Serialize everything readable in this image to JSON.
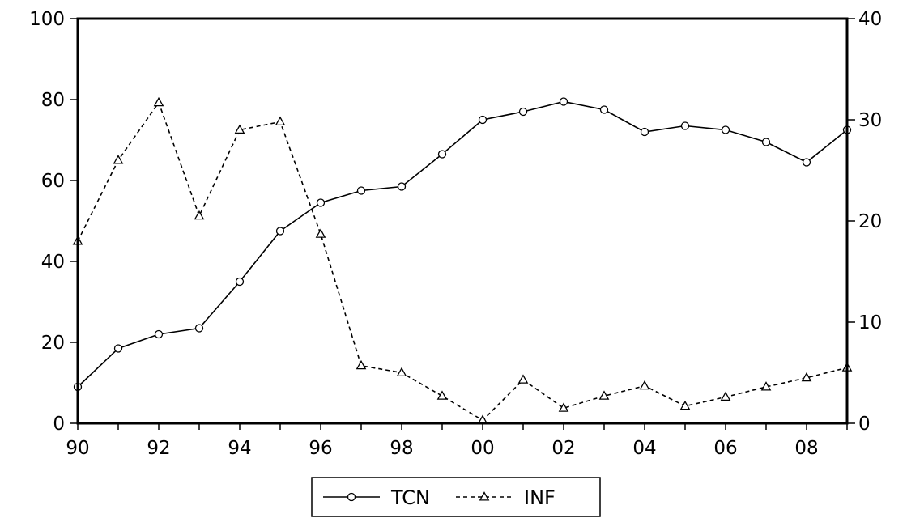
{
  "chart_data": {
    "type": "line",
    "title": "",
    "xlabel": "",
    "ylabel_left": "",
    "ylabel_right": "",
    "x": [
      1990,
      1991,
      1992,
      1993,
      1994,
      1995,
      1996,
      1997,
      1998,
      1999,
      2000,
      2001,
      2002,
      2003,
      2004,
      2005,
      2006,
      2007,
      2008,
      2009
    ],
    "x_tick_labels": [
      "90",
      "92",
      "94",
      "96",
      "98",
      "00",
      "02",
      "04",
      "06",
      "08"
    ],
    "x_tick_years": [
      1990,
      1992,
      1994,
      1996,
      1998,
      2000,
      2002,
      2004,
      2006,
      2008
    ],
    "xlim": [
      1990,
      2009
    ],
    "ylim_left": [
      0,
      100
    ],
    "ylim_right": [
      0,
      40
    ],
    "left_ticks": [
      "0",
      "20",
      "40",
      "60",
      "80",
      "100"
    ],
    "right_ticks": [
      "0",
      "10",
      "20",
      "30",
      "40"
    ],
    "grid": false,
    "legend_position": "bottom-center",
    "series": [
      {
        "name": "TCN",
        "axis": "left",
        "style": "solid",
        "marker": "circle",
        "values": [
          9,
          18.5,
          22,
          23.5,
          35,
          47.5,
          54.5,
          57.5,
          58.5,
          66.5,
          75,
          77,
          79.5,
          77.5,
          72,
          73.5,
          72.5,
          69.5,
          64.5,
          72.5
        ]
      },
      {
        "name": "INF",
        "axis": "right",
        "style": "dashed",
        "marker": "triangle",
        "values": [
          18,
          26,
          31.7,
          20.5,
          29,
          29.8,
          18.7,
          5.7,
          5,
          2.7,
          0.3,
          4.3,
          1.5,
          2.7,
          3.7,
          1.7,
          2.6,
          3.6,
          4.5,
          5.5
        ]
      }
    ]
  }
}
